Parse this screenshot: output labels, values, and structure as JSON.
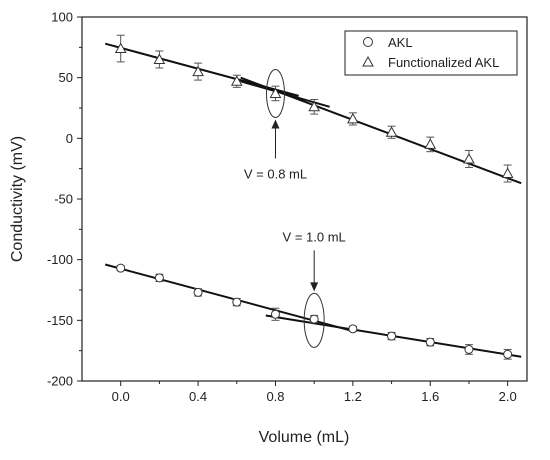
{
  "chart_data": {
    "type": "scatter",
    "xlabel": "Volume (mL)",
    "ylabel": "Conductivity (mV)",
    "xlim": [
      -0.2,
      2.1
    ],
    "ylim": [
      -200,
      100
    ],
    "xticks": [
      "0.0",
      "0.4",
      "0.8",
      "1.2",
      "1.6",
      "2.0"
    ],
    "yticks": [
      "100",
      "50",
      "0",
      "-50",
      "-100",
      "-150",
      "-200"
    ],
    "legend_position": "top-right",
    "series": [
      {
        "name": "AKL",
        "marker": "circle",
        "x": [
          0.0,
          0.2,
          0.4,
          0.6,
          0.8,
          1.0,
          1.2,
          1.4,
          1.6,
          1.8,
          2.0
        ],
        "y": [
          -107,
          -115,
          -127,
          -135,
          -145,
          -149,
          -157,
          -163,
          -168,
          -174,
          -178
        ],
        "error": [
          2,
          3,
          3,
          3,
          5,
          3,
          2,
          3,
          3,
          4,
          4
        ]
      },
      {
        "name": "Functionalized AKL",
        "marker": "triangle",
        "x": [
          0.0,
          0.2,
          0.4,
          0.6,
          0.8,
          1.0,
          1.2,
          1.4,
          1.6,
          1.8,
          2.0
        ],
        "y": [
          74,
          65,
          55,
          47,
          37,
          26,
          16,
          5,
          -5,
          -17,
          -29
        ],
        "error": [
          11,
          7,
          7,
          5,
          6,
          6,
          5,
          5,
          6,
          7,
          7
        ]
      }
    ],
    "fit_lines": [
      {
        "x": [
          -0.08,
          0.92
        ],
        "y": [
          78,
          35
        ]
      },
      {
        "x": [
          0.62,
          1.08
        ],
        "y": [
          47,
          26
        ]
      },
      {
        "x": [
          0.62,
          2.07
        ],
        "y": [
          50,
          -37
        ]
      },
      {
        "x": [
          -0.08,
          1.18
        ],
        "y": [
          -104,
          -158
        ]
      },
      {
        "x": [
          0.75,
          2.07
        ],
        "y": [
          -146,
          -180
        ]
      }
    ],
    "annotations": [
      {
        "text": "V = 0.8 mL",
        "marks_x": 0.8,
        "marks_y": 37
      },
      {
        "text": "V = 1.0 mL",
        "marks_x": 1.0,
        "marks_y": -150
      }
    ]
  }
}
